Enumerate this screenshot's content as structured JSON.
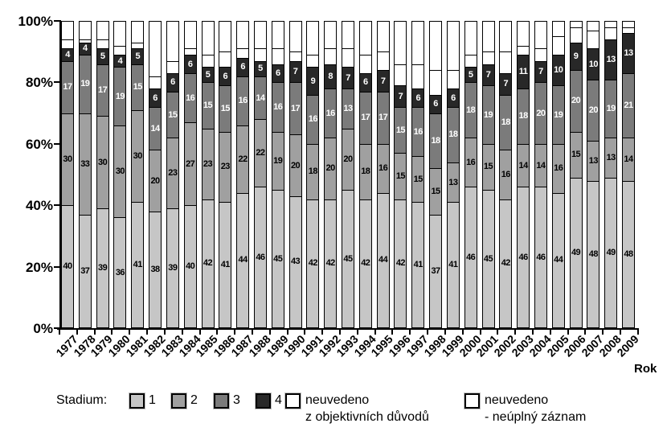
{
  "chart_data": {
    "type": "bar",
    "stacked": true,
    "percent": true,
    "title": "",
    "xlabel": "Rok",
    "ylabel": "",
    "ylim": [
      0,
      100
    ],
    "grid": false,
    "legend_position": "bottom",
    "y_ticks": [
      "0%",
      "20%",
      "40%",
      "60%",
      "80%",
      "100%"
    ],
    "categories": [
      "1977",
      "1978",
      "1979",
      "1980",
      "1981",
      "1982",
      "1983",
      "1984",
      "1985",
      "1986",
      "1987",
      "1988",
      "1989",
      "1990",
      "1991",
      "1992",
      "1993",
      "1994",
      "1995",
      "1996",
      "1997",
      "1998",
      "1999",
      "2000",
      "2001",
      "2002",
      "2003",
      "2004",
      "2005",
      "2006",
      "2007",
      "2008",
      "2009"
    ],
    "series": [
      {
        "key": "stadium-1",
        "name": "1",
        "color": "#c6c6c6",
        "label_color": "#000000",
        "labels_shown": true,
        "values": [
          40,
          37,
          39,
          36,
          41,
          38,
          39,
          40,
          42,
          41,
          44,
          46,
          45,
          43,
          42,
          42,
          45,
          42,
          44,
          42,
          41,
          37,
          41,
          46,
          45,
          42,
          46,
          46,
          44,
          49,
          48,
          49,
          48
        ]
      },
      {
        "key": "stadium-2",
        "name": "2",
        "color": "#a0a0a0",
        "label_color": "#000000",
        "labels_shown": true,
        "values": [
          30,
          33,
          30,
          30,
          30,
          20,
          23,
          27,
          23,
          23,
          22,
          22,
          19,
          20,
          18,
          20,
          20,
          18,
          16,
          15,
          15,
          15,
          13,
          16,
          15,
          16,
          14,
          14,
          16,
          15,
          13,
          13,
          14
        ]
      },
      {
        "key": "stadium-3",
        "name": "3",
        "color": "#7b7b7b",
        "label_color": "#ffffff",
        "labels_shown": true,
        "values": [
          17,
          19,
          17,
          19,
          15,
          14,
          15,
          16,
          15,
          15,
          16,
          14,
          16,
          17,
          16,
          16,
          13,
          17,
          17,
          15,
          16,
          18,
          18,
          18,
          19,
          18,
          18,
          20,
          19,
          20,
          20,
          19,
          21
        ]
      },
      {
        "key": "stadium-4",
        "name": "4",
        "color": "#282828",
        "label_color": "#ffffff",
        "labels_shown": true,
        "values": [
          4,
          4,
          5,
          4,
          5,
          6,
          6,
          6,
          5,
          6,
          6,
          5,
          6,
          7,
          9,
          8,
          7,
          6,
          7,
          7,
          6,
          6,
          6,
          5,
          7,
          7,
          11,
          7,
          10,
          9,
          10,
          13,
          13
        ]
      },
      {
        "key": "neuvedeno-objektivni",
        "name": "neuvedeno z objektivních důvodů",
        "color": "#ffffff",
        "label_color": "#000000",
        "labels_shown": false,
        "values_estimated": true,
        "values": [
          3,
          1,
          3,
          3,
          2,
          4,
          4,
          2,
          4,
          5,
          3,
          4,
          5,
          3,
          4,
          5,
          6,
          6,
          6,
          7,
          8,
          8,
          6,
          4,
          4,
          7,
          3,
          4,
          6,
          5,
          6,
          4,
          2
        ]
      },
      {
        "key": "neuvedeno-neuplny",
        "name": "neuvedeno - neúplný záznam",
        "color": "#ffffff",
        "label_color": "#000000",
        "labels_shown": false,
        "values_estimated": true,
        "values": [
          6,
          6,
          6,
          8,
          7,
          18,
          13,
          9,
          11,
          10,
          9,
          9,
          9,
          10,
          11,
          9,
          9,
          11,
          10,
          14,
          14,
          16,
          16,
          11,
          10,
          10,
          8,
          9,
          5,
          2,
          3,
          2,
          2
        ]
      }
    ]
  },
  "legend": {
    "prefix": "Stadium:",
    "items": [
      {
        "label": "1",
        "color": "#c6c6c6"
      },
      {
        "label": "2",
        "color": "#a0a0a0"
      },
      {
        "label": "3",
        "color": "#7b7b7b"
      },
      {
        "label": "4",
        "color": "#282828"
      },
      {
        "label_line1": "neuvedeno",
        "label_line2": "z objektivních důvodů",
        "color": "#ffffff"
      },
      {
        "label_line1": "neuvedeno",
        "label_line2": "- neúplný záznam",
        "color": "#ffffff"
      }
    ]
  }
}
